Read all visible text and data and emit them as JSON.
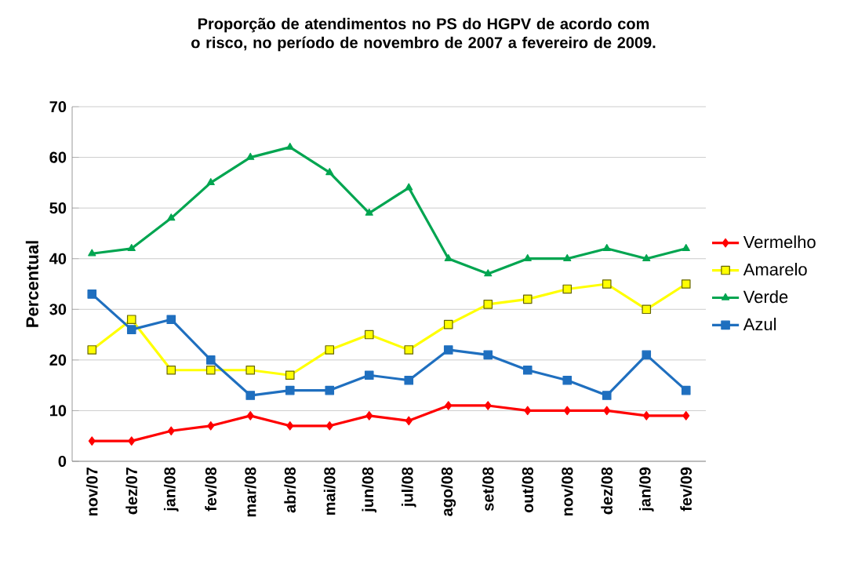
{
  "chart_data": {
    "type": "line",
    "title": "Proporção de atendimentos no PS do HGPV de acordo com o risco, no período de novembro de 2007 a fevereiro de 2009.",
    "ylabel": "Percentual",
    "categories": [
      "nov/07",
      "dez/07",
      "jan/08",
      "fev/08",
      "mar/08",
      "abr/08",
      "mai/08",
      "jun/08",
      "jul/08",
      "ago/08",
      "set/08",
      "out/08",
      "nov/08",
      "dez/08",
      "jan/09",
      "fev/09"
    ],
    "series": [
      {
        "name": "Vermelho",
        "color": "#ff0000",
        "marker": "diamond",
        "values": [
          4,
          4,
          6,
          7,
          9,
          7,
          7,
          9,
          8,
          11,
          11,
          10,
          10,
          10,
          9,
          9
        ]
      },
      {
        "name": "Amarelo",
        "color": "#ffff00",
        "marker": "square",
        "values": [
          22,
          28,
          18,
          18,
          18,
          17,
          22,
          25,
          22,
          27,
          31,
          32,
          34,
          35,
          30,
          35
        ]
      },
      {
        "name": "Verde",
        "color": "#00a550",
        "marker": "triangle",
        "values": [
          41,
          42,
          48,
          55,
          60,
          62,
          57,
          49,
          54,
          40,
          37,
          40,
          40,
          42,
          40,
          42
        ]
      },
      {
        "name": "Azul",
        "color": "#1f6fbf",
        "marker": "square",
        "values": [
          33,
          26,
          28,
          20,
          13,
          14,
          14,
          17,
          16,
          22,
          21,
          18,
          16,
          13,
          21,
          14
        ]
      }
    ],
    "ylim": [
      0,
      70
    ],
    "yticks": [
      0,
      10,
      20,
      30,
      40,
      50,
      60,
      70
    ],
    "grid": "y",
    "legend": "right"
  }
}
